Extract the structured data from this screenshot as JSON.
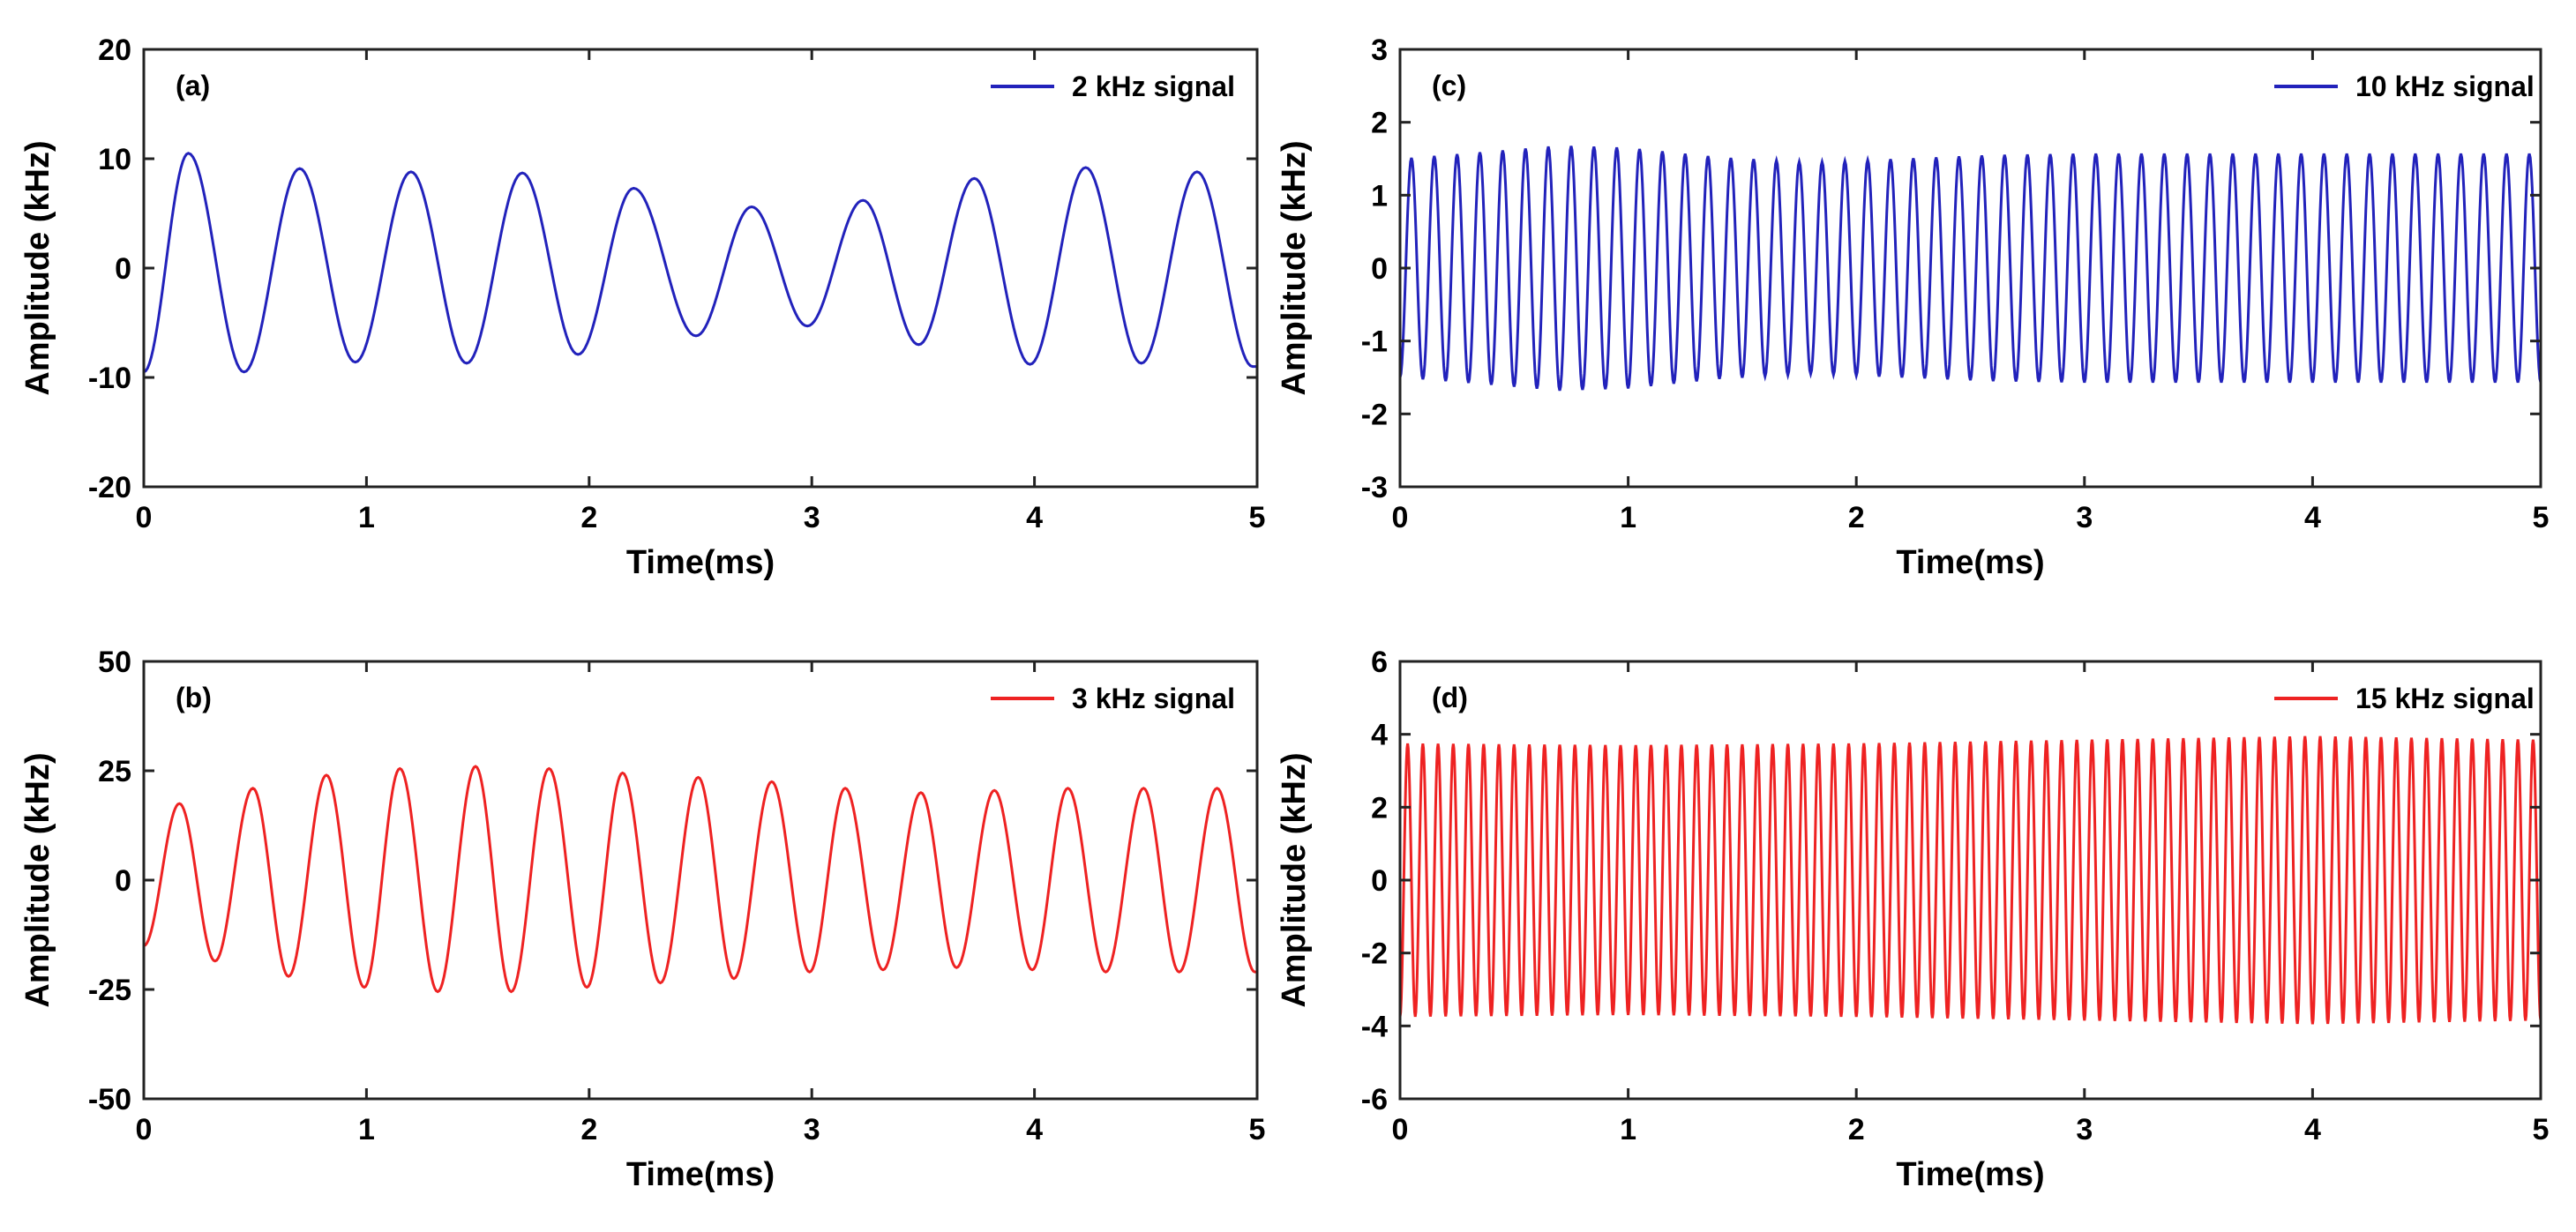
{
  "chart_data": [
    {
      "id": "a",
      "type": "line",
      "panel_label": "(a)",
      "title": "",
      "xlabel": "Time(ms)",
      "ylabel": "Amplitude (kHz)",
      "xlim": [
        0,
        5
      ],
      "ylim": [
        -20,
        20
      ],
      "xticks": [
        0,
        1,
        2,
        3,
        4,
        5
      ],
      "yticks": [
        -20,
        -10,
        0,
        10,
        20
      ],
      "xtick_labels": [
        "0",
        "1",
        "2",
        "3",
        "4",
        "5"
      ],
      "ytick_labels": [
        "-20",
        "-10",
        "0",
        "10",
        "20"
      ],
      "grid": false,
      "legend_position": "top-right",
      "series": [
        {
          "name": "2 kHz signal",
          "color": "#2222bb",
          "frequency_khz": 2,
          "start_phase_value": -9.5,
          "peaks": [
            {
              "t": 0.2,
              "v": 10.5
            },
            {
              "t": 0.45,
              "v": -9.5
            },
            {
              "t": 0.7,
              "v": 9.1
            },
            {
              "t": 0.95,
              "v": -8.6
            },
            {
              "t": 1.2,
              "v": 8.8
            },
            {
              "t": 1.45,
              "v": -8.7
            },
            {
              "t": 1.7,
              "v": 8.7
            },
            {
              "t": 1.95,
              "v": -7.9
            },
            {
              "t": 2.2,
              "v": 7.3
            },
            {
              "t": 2.48,
              "v": -6.2
            },
            {
              "t": 2.73,
              "v": 5.6
            },
            {
              "t": 2.98,
              "v": -5.3
            },
            {
              "t": 3.23,
              "v": 6.2
            },
            {
              "t": 3.48,
              "v": -7.0
            },
            {
              "t": 3.73,
              "v": 8.2
            },
            {
              "t": 3.98,
              "v": -8.8
            },
            {
              "t": 4.23,
              "v": 9.2
            },
            {
              "t": 4.48,
              "v": -8.7
            },
            {
              "t": 4.73,
              "v": 8.8
            },
            {
              "t": 4.98,
              "v": -9.0
            }
          ]
        }
      ]
    },
    {
      "id": "b",
      "type": "line",
      "panel_label": "(b)",
      "title": "",
      "xlabel": "Time(ms)",
      "ylabel": "Amplitude (kHz)",
      "xlim": [
        0,
        5
      ],
      "ylim": [
        -50,
        50
      ],
      "xticks": [
        0,
        1,
        2,
        3,
        4,
        5
      ],
      "yticks": [
        -50,
        -25,
        0,
        25,
        50
      ],
      "xtick_labels": [
        "0",
        "1",
        "2",
        "3",
        "4",
        "5"
      ],
      "ytick_labels": [
        "-50",
        "-25",
        "0",
        "25",
        "50"
      ],
      "grid": false,
      "legend_position": "top-right",
      "series": [
        {
          "name": "3 kHz signal",
          "color": "#ee2222",
          "frequency_khz": 3,
          "start_phase_value": -15,
          "peaks": [
            {
              "t": 0.16,
              "v": 17.5
            },
            {
              "t": 0.32,
              "v": -18.5
            },
            {
              "t": 0.49,
              "v": 21
            },
            {
              "t": 0.65,
              "v": -22
            },
            {
              "t": 0.82,
              "v": 24
            },
            {
              "t": 0.99,
              "v": -24.5
            },
            {
              "t": 1.15,
              "v": 25.5
            },
            {
              "t": 1.32,
              "v": -25.5
            },
            {
              "t": 1.49,
              "v": 26
            },
            {
              "t": 1.65,
              "v": -25.5
            },
            {
              "t": 1.82,
              "v": 25.5
            },
            {
              "t": 1.99,
              "v": -24.5
            },
            {
              "t": 2.15,
              "v": 24.5
            },
            {
              "t": 2.32,
              "v": -23.5
            },
            {
              "t": 2.49,
              "v": 23.5
            },
            {
              "t": 2.65,
              "v": -22.5
            },
            {
              "t": 2.82,
              "v": 22.5
            },
            {
              "t": 2.99,
              "v": -21
            },
            {
              "t": 3.15,
              "v": 21
            },
            {
              "t": 3.32,
              "v": -20.5
            },
            {
              "t": 3.49,
              "v": 20
            },
            {
              "t": 3.65,
              "v": -20
            },
            {
              "t": 3.82,
              "v": 20.5
            },
            {
              "t": 3.99,
              "v": -20.5
            },
            {
              "t": 4.15,
              "v": 21
            },
            {
              "t": 4.32,
              "v": -21
            },
            {
              "t": 4.49,
              "v": 21
            },
            {
              "t": 4.65,
              "v": -21
            },
            {
              "t": 4.82,
              "v": 21
            },
            {
              "t": 4.99,
              "v": -21
            }
          ]
        }
      ]
    },
    {
      "id": "c",
      "type": "line",
      "panel_label": "(c)",
      "title": "",
      "xlabel": "Time(ms)",
      "ylabel": "Amplitude (kHz)",
      "xlim": [
        0,
        5
      ],
      "ylim": [
        -3,
        3
      ],
      "xticks": [
        0,
        1,
        2,
        3,
        4,
        5
      ],
      "yticks": [
        -3,
        -2,
        -1,
        0,
        1,
        2,
        3
      ],
      "xtick_labels": [
        "0",
        "1",
        "2",
        "3",
        "4",
        "5"
      ],
      "ytick_labels": [
        "-3",
        "-2",
        "-1",
        "0",
        "1",
        "2",
        "3"
      ],
      "grid": false,
      "legend_position": "top-right",
      "series": [
        {
          "name": "10 kHz signal",
          "color": "#2222bb",
          "frequency_khz": 10,
          "start_phase_value": -1.5,
          "envelope": [
            {
              "t": 0.0,
              "v": 1.5
            },
            {
              "t": 0.4,
              "v": 1.6
            },
            {
              "t": 0.7,
              "v": 1.68
            },
            {
              "t": 1.0,
              "v": 1.65
            },
            {
              "t": 1.4,
              "v": 1.52
            },
            {
              "t": 1.8,
              "v": 1.45
            },
            {
              "t": 2.2,
              "v": 1.5
            },
            {
              "t": 2.6,
              "v": 1.55
            },
            {
              "t": 3.0,
              "v": 1.57
            },
            {
              "t": 4.0,
              "v": 1.57
            },
            {
              "t": 5.0,
              "v": 1.57
            }
          ]
        }
      ]
    },
    {
      "id": "d",
      "type": "line",
      "panel_label": "(d)",
      "title": "",
      "xlabel": "Time(ms)",
      "ylabel": "Amplitude (kHz)",
      "xlim": [
        0,
        5
      ],
      "ylim": [
        -6,
        6
      ],
      "xticks": [
        0,
        1,
        2,
        3,
        4,
        5
      ],
      "yticks": [
        -6,
        -4,
        -2,
        0,
        2,
        4,
        6
      ],
      "xtick_labels": [
        "0",
        "1",
        "2",
        "3",
        "4",
        "5"
      ],
      "ytick_labels": [
        "-6",
        "-4",
        "-2",
        "0",
        "2",
        "4",
        "6"
      ],
      "grid": false,
      "legend_position": "top-right",
      "series": [
        {
          "name": "15 kHz signal",
          "color": "#ee2222",
          "frequency_khz": 15,
          "start_phase_value": -3.8,
          "envelope": [
            {
              "t": 0.0,
              "v": 3.75
            },
            {
              "t": 1.0,
              "v": 3.7
            },
            {
              "t": 2.0,
              "v": 3.75
            },
            {
              "t": 3.0,
              "v": 3.85
            },
            {
              "t": 4.0,
              "v": 3.95
            },
            {
              "t": 5.0,
              "v": 3.85
            }
          ]
        }
      ]
    }
  ]
}
